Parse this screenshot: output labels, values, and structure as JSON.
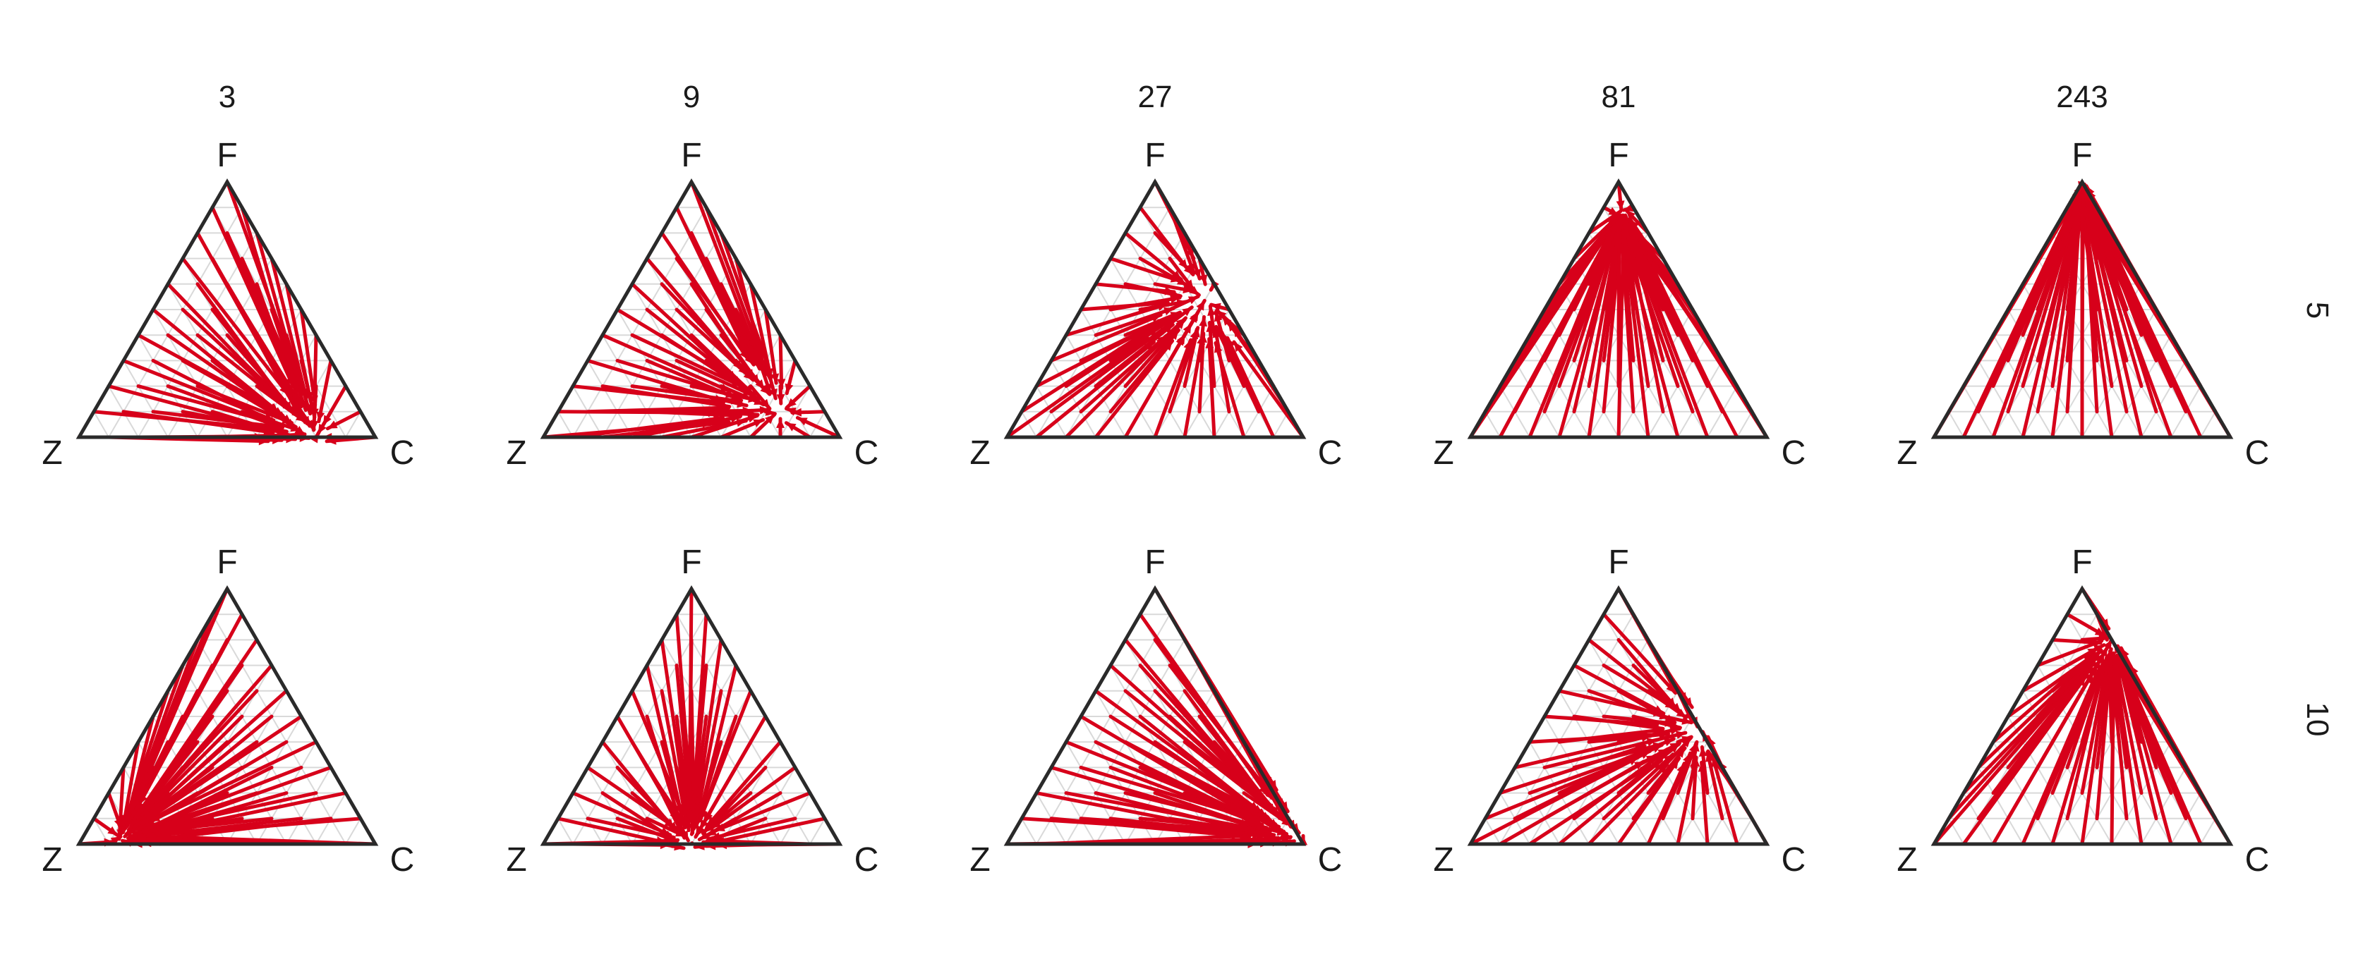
{
  "chart_data": {
    "type": "ternary-vector-field",
    "columns": [
      "3",
      "9",
      "27",
      "81",
      "243"
    ],
    "rows": [
      "5",
      "10"
    ],
    "vertices": {
      "top": "F",
      "left": "Z",
      "right": "C"
    },
    "grid": true,
    "colors": {
      "arrow": "#d7001a",
      "frame": "#2a2a2a",
      "grid": "#d9d9d9"
    },
    "panels": [
      {
        "row": "5",
        "column": "3",
        "attractor": {
          "F": 0.0,
          "Z": 0.2,
          "C": 0.8
        },
        "strength": 0.78
      },
      {
        "row": "5",
        "column": "9",
        "attractor": {
          "F": 0.1,
          "Z": 0.15,
          "C": 0.75
        },
        "strength": 0.72
      },
      {
        "row": "5",
        "column": "27",
        "attractor": {
          "F": 0.55,
          "Z": 0.05,
          "C": 0.4
        },
        "strength": 0.7
      },
      {
        "row": "5",
        "column": "81",
        "attractor": {
          "F": 0.88,
          "Z": 0.05,
          "C": 0.07
        },
        "strength": 0.92
      },
      {
        "row": "5",
        "column": "243",
        "attractor": {
          "F": 0.98,
          "Z": 0.01,
          "C": 0.01
        },
        "strength": 0.97
      },
      {
        "row": "10",
        "column": "3",
        "attractor": {
          "F": 0.02,
          "Z": 0.85,
          "C": 0.13
        },
        "strength": 0.86
      },
      {
        "row": "10",
        "column": "9",
        "attractor": {
          "F": 0.0,
          "Z": 0.5,
          "C": 0.5
        },
        "strength": 0.82
      },
      {
        "row": "10",
        "column": "27",
        "attractor": {
          "F": 0.02,
          "Z": 0.0,
          "C": 0.98
        },
        "strength": 0.8
      },
      {
        "row": "10",
        "column": "81",
        "attractor": {
          "F": 0.45,
          "Z": 0.0,
          "C": 0.55
        },
        "strength": 0.72
      },
      {
        "row": "10",
        "column": "243",
        "attractor": {
          "F": 0.8,
          "Z": 0.0,
          "C": 0.2
        },
        "strength": 0.84
      }
    ]
  }
}
